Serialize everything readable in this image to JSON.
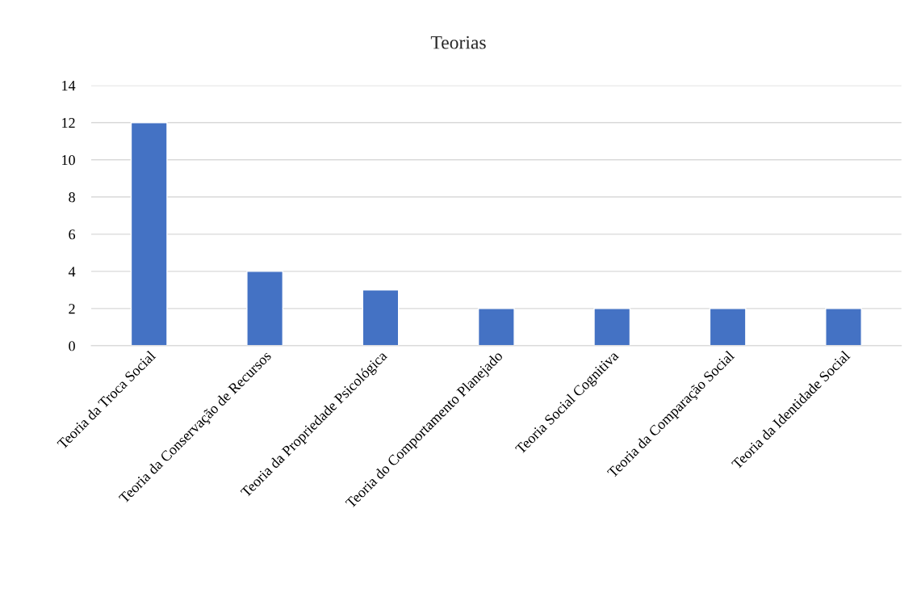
{
  "chart_data": {
    "type": "bar",
    "title": "Teorias",
    "categories": [
      "Teoria da Troca Social",
      "Teoria da Conservação de Recursos",
      "Teoria da Propriedade Psicológica",
      "Teoria do Comportamento Planejado",
      "Teoria Social Cognitiva",
      "Teoria da Comparação Social",
      "Teoria da Identidade Social"
    ],
    "values": [
      12,
      4,
      3,
      2,
      2,
      2,
      2
    ],
    "color": "#4472c4",
    "ylim": [
      0,
      14
    ],
    "yticks": [
      0,
      2,
      4,
      6,
      8,
      10,
      12,
      14
    ],
    "grid": "y",
    "legend": false
  }
}
